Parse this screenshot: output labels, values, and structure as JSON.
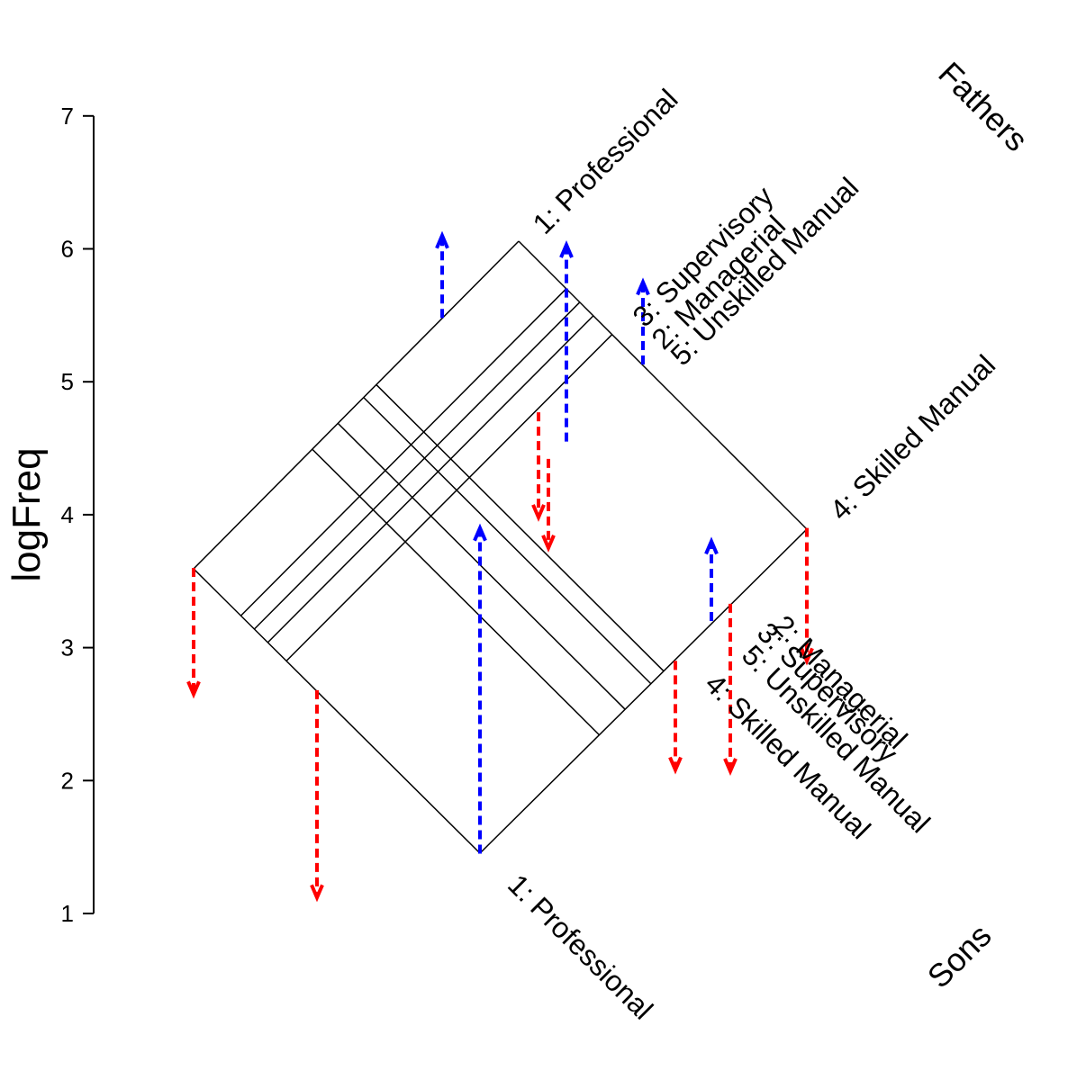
{
  "chart_data": {
    "type": "diagram",
    "ylabel": "logFreq",
    "ylim": [
      1,
      7
    ],
    "y_ticks": [
      "1",
      "2",
      "3",
      "4",
      "5",
      "6",
      "7"
    ],
    "factor_labels": {
      "rows": "Fathers",
      "cols": "Sons"
    },
    "father_levels": [
      "1: Professional",
      "4: Skilled Manual",
      "5: Unskilled Manual",
      "3: Supervisory",
      "2: Managerial"
    ],
    "son_levels": [
      "1: Professional",
      "3: Supervisory",
      "2: Managerial",
      "5: Unskilled Manual",
      "4: Skilled Manual"
    ],
    "father_effects": [
      {
        "level": "1: Professional",
        "from": 3.6,
        "to": 2.65
      },
      {
        "level": "4: Skilled Manual",
        "from": 2.68,
        "to": 1.12
      },
      {
        "level": "5: Unskilled Manual",
        "from": 1.45,
        "to": 3.9
      },
      {
        "level": "3: Supervisory",
        "from": 2.9,
        "to": 2.08
      },
      {
        "level": "2: Managerial",
        "from": 3.33,
        "to": 2.07
      }
    ],
    "son_effects": [
      {
        "level": "1: Professional",
        "from": 5.48,
        "to": 6.1
      },
      {
        "level": "3: Supervisory",
        "from": 4.55,
        "to": 6.03
      },
      {
        "level": "2: Managerial",
        "from": 5.13,
        "to": 5.75
      },
      {
        "level": "5: Unskilled Manual",
        "from": 3.2,
        "to": 3.8
      },
      {
        "level": "4: Skilled Manual",
        "from": 3.9,
        "to": 2.9
      }
    ],
    "interaction_effects": [
      {
        "from": 4.77,
        "to": 3.98
      },
      {
        "from": 4.42,
        "to": 3.75
      }
    ],
    "colors": {
      "positive": "#0000ff",
      "negative": "#ff0000",
      "lines": "#000000"
    }
  }
}
